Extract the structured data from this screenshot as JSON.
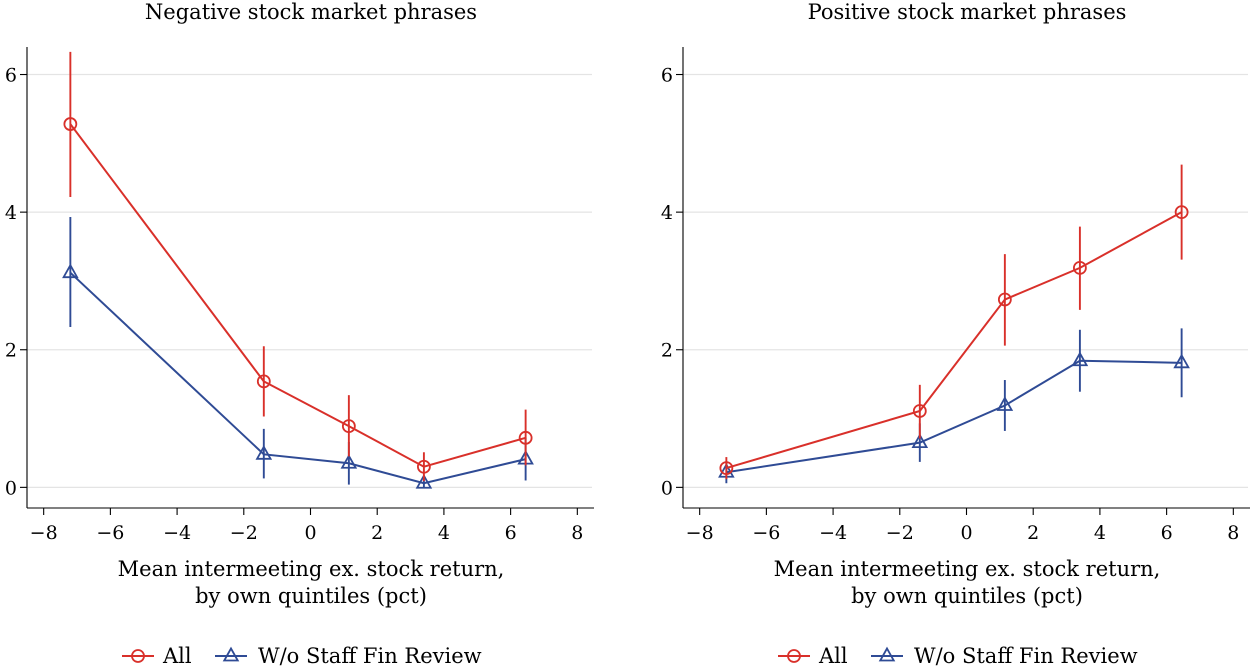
{
  "colors": {
    "all": "#d9302a",
    "wo": "#2f4b95",
    "grid": "#e4e4e4",
    "axis": "#000000"
  },
  "legend": {
    "all_label": "All",
    "wo_label": "W/o Staff Fin Review"
  },
  "chart_data": [
    {
      "type": "line",
      "title": "Negative stock market phrases",
      "xlabel_line1": "Mean intermeeting ex. stock return,",
      "xlabel_line2": "by own quintiles (pct)",
      "ylabel": "",
      "xlim": [
        -8.5,
        8.5
      ],
      "ylim": [
        -0.3,
        6.4
      ],
      "xticks": [
        -8,
        -6,
        -4,
        -2,
        0,
        2,
        4,
        6,
        8
      ],
      "xtick_labels": [
        "−8",
        "−6",
        "−4",
        "−2",
        "0",
        "2",
        "4",
        "6",
        "8"
      ],
      "yticks": [
        0,
        2,
        4,
        6
      ],
      "ytick_labels": [
        "0",
        "2",
        "4",
        "6"
      ],
      "grid": true,
      "legend_position": "bottom",
      "series": [
        {
          "name": "All",
          "color_key": "all",
          "marker": "circle",
          "x": [
            -7.2,
            -1.4,
            1.15,
            3.4,
            6.45
          ],
          "y": [
            5.28,
            1.54,
            0.89,
            0.3,
            0.72
          ],
          "ci_low": [
            4.22,
            1.03,
            0.45,
            0.09,
            0.32
          ],
          "ci_high": [
            6.33,
            2.05,
            1.34,
            0.51,
            1.13
          ]
        },
        {
          "name": "W/o Staff Fin Review",
          "color_key": "wo",
          "marker": "triangle",
          "x": [
            -7.2,
            -1.4,
            1.15,
            3.4,
            6.45
          ],
          "y": [
            3.12,
            0.48,
            0.35,
            0.06,
            0.41
          ],
          "ci_low": [
            2.33,
            0.13,
            0.04,
            0.0,
            0.1
          ],
          "ci_high": [
            3.93,
            0.85,
            0.66,
            0.14,
            0.72
          ]
        }
      ]
    },
    {
      "type": "line",
      "title": "Positive stock market phrases",
      "xlabel_line1": "Mean intermeeting ex. stock return,",
      "xlabel_line2": "by own quintiles (pct)",
      "ylabel": "",
      "xlim": [
        -8.5,
        8.5
      ],
      "ylim": [
        -0.3,
        6.4
      ],
      "xticks": [
        -8,
        -6,
        -4,
        -2,
        0,
        2,
        4,
        6,
        8
      ],
      "xtick_labels": [
        "−8",
        "−6",
        "−4",
        "−2",
        "0",
        "2",
        "4",
        "6",
        "8"
      ],
      "yticks": [
        0,
        2,
        4,
        6
      ],
      "ytick_labels": [
        "0",
        "2",
        "4",
        "6"
      ],
      "grid": true,
      "legend_position": "bottom",
      "series": [
        {
          "name": "All",
          "color_key": "all",
          "marker": "circle",
          "x": [
            -7.2,
            -1.4,
            1.15,
            3.4,
            6.45
          ],
          "y": [
            0.28,
            1.11,
            2.73,
            3.19,
            4.0
          ],
          "ci_low": [
            0.12,
            0.71,
            2.06,
            2.58,
            3.31
          ],
          "ci_high": [
            0.44,
            1.49,
            3.39,
            3.79,
            4.69
          ]
        },
        {
          "name": "W/o Staff Fin Review",
          "color_key": "wo",
          "marker": "triangle",
          "x": [
            -7.2,
            -1.4,
            1.15,
            3.4,
            6.45
          ],
          "y": [
            0.22,
            0.65,
            1.19,
            1.84,
            1.81
          ],
          "ci_low": [
            0.06,
            0.37,
            0.82,
            1.39,
            1.31
          ],
          "ci_high": [
            0.38,
            0.93,
            1.56,
            2.29,
            2.31
          ]
        }
      ]
    }
  ]
}
